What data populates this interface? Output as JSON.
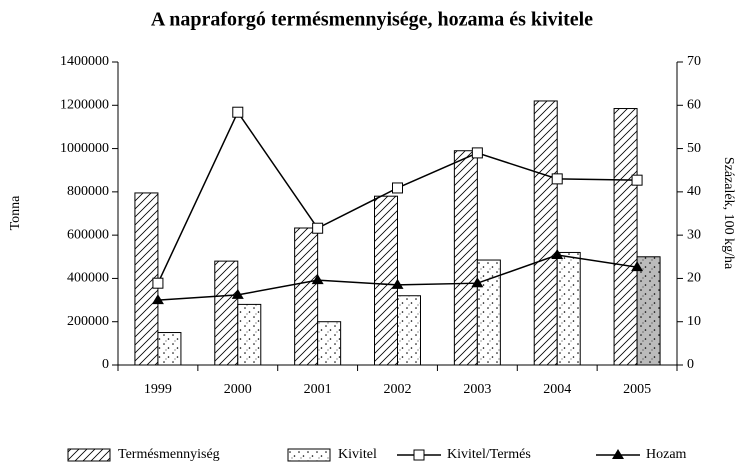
{
  "chart_data": {
    "type": "bar-line",
    "title": "A napraforgó termésmennyisége, hozama és kivitele",
    "y_label": "Tonna",
    "y2_label": "Százalék, 100 kg/ha",
    "categories": [
      "1999",
      "2000",
      "2001",
      "2002",
      "2003",
      "2004",
      "2005"
    ],
    "series": [
      {
        "name": "Termésmennyiség",
        "kind": "bar",
        "pattern": "hatch",
        "color": "#ffffff",
        "values": [
          795000,
          480000,
          633000,
          780000,
          990000,
          1220000,
          1185000
        ]
      },
      {
        "name": "Kivitel",
        "kind": "bar",
        "pattern": "dots",
        "color": "#ffffff",
        "colors": [
          "#ffffff",
          "#ffffff",
          "#ffffff",
          "#ffffff",
          "#ffffff",
          "#ffffff",
          "#bbbbbb"
        ],
        "values": [
          150000,
          280000,
          200000,
          320000,
          485000,
          520000,
          500000
        ]
      },
      {
        "name": "Kivitel/Termés",
        "kind": "line",
        "marker": "square",
        "axis": "y2",
        "color": "#000000",
        "values": [
          18.9,
          58.4,
          31.6,
          40.9,
          49,
          43,
          42.7
        ]
      },
      {
        "name": "Hozam",
        "kind": "line",
        "marker": "triangle",
        "axis": "y2",
        "color": "#000000",
        "values": [
          15,
          16.2,
          19.6,
          18.5,
          18.9,
          25.4,
          22.6
        ]
      }
    ],
    "ylim": [
      0,
      1400000
    ],
    "yticks": [
      0,
      200000,
      400000,
      600000,
      800000,
      1000000,
      1200000,
      1400000
    ],
    "y2lim": [
      0,
      70
    ],
    "y2ticks": [
      0,
      10,
      20,
      30,
      40,
      50,
      60,
      70
    ],
    "legend": "bottom"
  }
}
